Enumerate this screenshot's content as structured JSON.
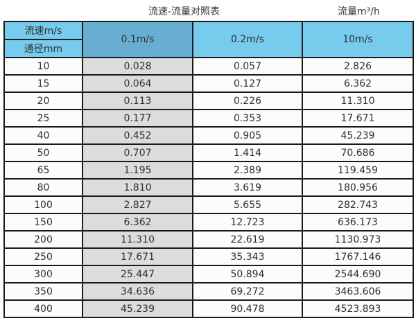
{
  "page": {
    "title": "流速-流量对照表",
    "right_unit_label": "流量m³/h"
  },
  "colors": {
    "header_light_blue": "#77CCEE",
    "header_dark_blue": "#68AED2",
    "first_data_column_gray": "#DCDCDC",
    "border": "#1A1A1A"
  },
  "chart_data": {
    "type": "table",
    "title": "流速-流量对照表",
    "right_label": "流量m³/h",
    "header": {
      "corner_top": "流速m/s",
      "corner_bottom": "通径mm",
      "velocity_columns": [
        "0.1m/s",
        "0.2m/s",
        "10m/s"
      ]
    },
    "rows": [
      {
        "diameter_mm": "10",
        "flows_m3h": [
          "0.028",
          "0.057",
          "2.826"
        ]
      },
      {
        "diameter_mm": "15",
        "flows_m3h": [
          "0.064",
          "0.127",
          "6.362"
        ]
      },
      {
        "diameter_mm": "20",
        "flows_m3h": [
          "0.113",
          "0.226",
          "11.310"
        ]
      },
      {
        "diameter_mm": "25",
        "flows_m3h": [
          "0.177",
          "0.353",
          "17.671"
        ]
      },
      {
        "diameter_mm": "40",
        "flows_m3h": [
          "0.452",
          "0.905",
          "45.239"
        ]
      },
      {
        "diameter_mm": "50",
        "flows_m3h": [
          "0.707",
          "1.414",
          "70.686"
        ]
      },
      {
        "diameter_mm": "65",
        "flows_m3h": [
          "1.195",
          "2.389",
          "119.459"
        ]
      },
      {
        "diameter_mm": "80",
        "flows_m3h": [
          "1.810",
          "3.619",
          "180.956"
        ]
      },
      {
        "diameter_mm": "100",
        "flows_m3h": [
          "2.827",
          "5.655",
          "282.743"
        ]
      },
      {
        "diameter_mm": "150",
        "flows_m3h": [
          "6.362",
          "12.723",
          "636.173"
        ]
      },
      {
        "diameter_mm": "200",
        "flows_m3h": [
          "11.310",
          "22.619",
          "1130.973"
        ]
      },
      {
        "diameter_mm": "250",
        "flows_m3h": [
          "17.671",
          "35.343",
          "1767.146"
        ]
      },
      {
        "diameter_mm": "300",
        "flows_m3h": [
          "25.447",
          "50.894",
          "2544.690"
        ]
      },
      {
        "diameter_mm": "350",
        "flows_m3h": [
          "34.636",
          "69.272",
          "3463.606"
        ]
      },
      {
        "diameter_mm": "400",
        "flows_m3h": [
          "45.239",
          "90.478",
          "4523.893"
        ]
      }
    ]
  }
}
